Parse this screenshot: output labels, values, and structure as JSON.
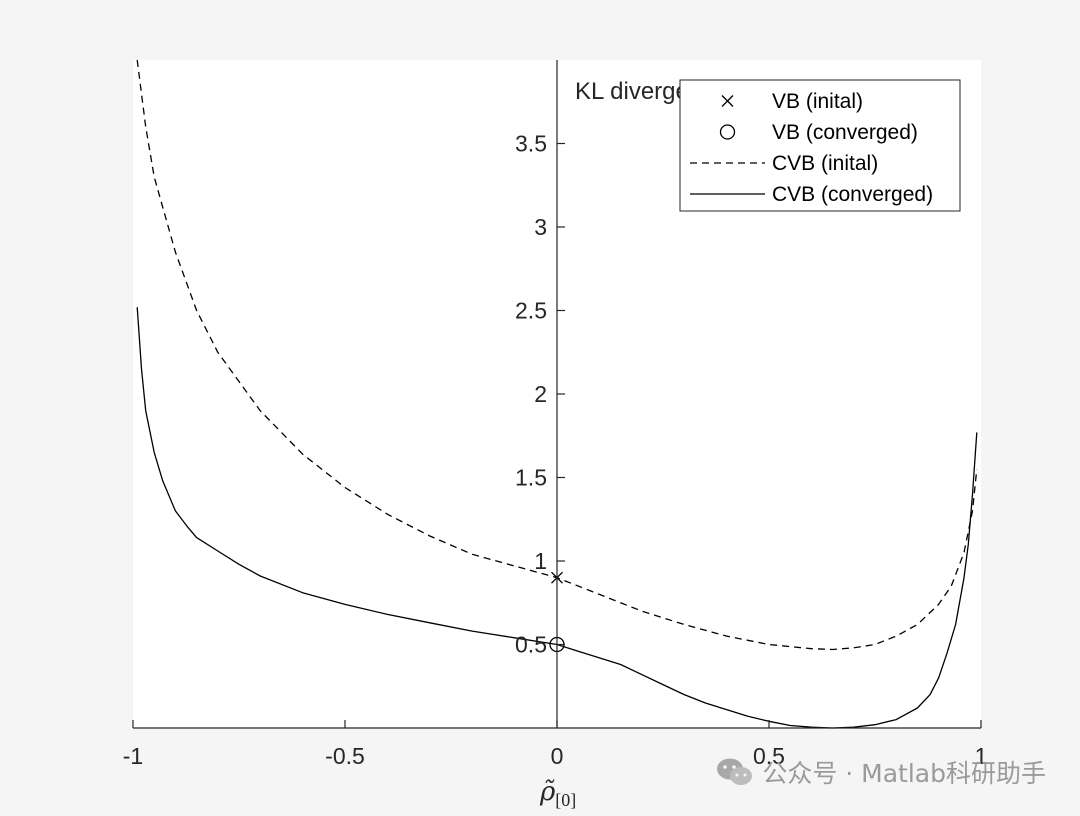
{
  "chart_data": {
    "type": "line",
    "title": "KL divergence",
    "xlabel": "ρ̃",
    "xlabel_subscript": "[0]",
    "xlim": [
      -1,
      1
    ],
    "ylim": [
      0,
      4
    ],
    "xticks": [
      -1,
      -0.5,
      0,
      0.5,
      1
    ],
    "xtick_labels": [
      "-1",
      "-0.5",
      "0",
      "0.5",
      "1"
    ],
    "yticks": [
      0.5,
      1,
      1.5,
      2,
      2.5,
      3,
      3.5
    ],
    "ytick_labels": [
      "0.5",
      "1",
      "1.5",
      "2",
      "2.5",
      "3",
      "3.5"
    ],
    "grid": false,
    "legend_position": "top-right",
    "series": [
      {
        "name": "VB (inital)",
        "style": "marker-x",
        "x": [
          0
        ],
        "y": [
          0.9
        ]
      },
      {
        "name": "VB (converged)",
        "style": "marker-circle",
        "x": [
          0
        ],
        "y": [
          0.5
        ]
      },
      {
        "name": "CVB (inital)",
        "style": "dashed",
        "x": [
          -0.99,
          -0.97,
          -0.95,
          -0.9,
          -0.85,
          -0.8,
          -0.7,
          -0.6,
          -0.5,
          -0.4,
          -0.3,
          -0.2,
          -0.1,
          0,
          0.1,
          0.2,
          0.3,
          0.4,
          0.5,
          0.6,
          0.65,
          0.7,
          0.75,
          0.8,
          0.85,
          0.9,
          0.93,
          0.96,
          0.98,
          0.99
        ],
        "y": [
          4.0,
          3.6,
          3.3,
          2.85,
          2.5,
          2.25,
          1.9,
          1.64,
          1.44,
          1.28,
          1.15,
          1.04,
          0.97,
          0.9,
          0.8,
          0.7,
          0.62,
          0.55,
          0.5,
          0.475,
          0.47,
          0.48,
          0.5,
          0.55,
          0.62,
          0.74,
          0.85,
          1.05,
          1.3,
          1.55
        ]
      },
      {
        "name": "CVB (converged)",
        "style": "solid",
        "x": [
          -0.99,
          -0.98,
          -0.97,
          -0.95,
          -0.93,
          -0.9,
          -0.87,
          -0.85,
          -0.8,
          -0.75,
          -0.7,
          -0.6,
          -0.5,
          -0.4,
          -0.3,
          -0.2,
          -0.1,
          0,
          0.05,
          0.1,
          0.15,
          0.2,
          0.25,
          0.3,
          0.35,
          0.4,
          0.45,
          0.5,
          0.55,
          0.6,
          0.65,
          0.7,
          0.75,
          0.8,
          0.85,
          0.88,
          0.9,
          0.92,
          0.94,
          0.96,
          0.97,
          0.98,
          0.99
        ],
        "y": [
          2.52,
          2.15,
          1.9,
          1.65,
          1.48,
          1.3,
          1.2,
          1.14,
          1.06,
          0.98,
          0.91,
          0.81,
          0.74,
          0.68,
          0.63,
          0.58,
          0.54,
          0.5,
          0.46,
          0.42,
          0.38,
          0.32,
          0.26,
          0.2,
          0.15,
          0.11,
          0.07,
          0.04,
          0.015,
          0.005,
          0.0,
          0.005,
          0.02,
          0.05,
          0.12,
          0.2,
          0.3,
          0.45,
          0.62,
          0.9,
          1.1,
          1.4,
          1.77
        ]
      }
    ]
  },
  "watermark": {
    "text": "公众号 · Matlab科研助手",
    "icon": "wechat-icon"
  }
}
